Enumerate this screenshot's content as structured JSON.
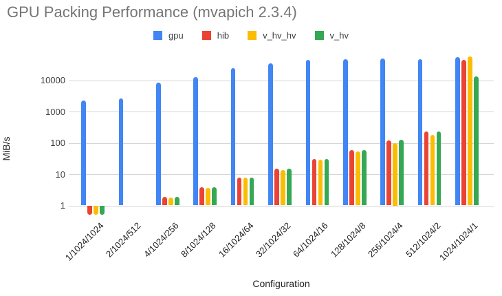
{
  "title": "GPU Packing Performance (mvapich 2.3.4)",
  "chart_data": {
    "type": "bar",
    "title": "GPU Packing Performance (mvapich 2.3.4)",
    "xlabel": "Configuration",
    "ylabel": "MiB/s",
    "y_scale": "log",
    "y_ticks": [
      1,
      10,
      100,
      1000,
      10000
    ],
    "ylim": [
      0.48,
      80000
    ],
    "grid": true,
    "legend_position": "top",
    "categories": [
      "1/1024/1024",
      "2/1024/512",
      "4/1024/256",
      "8/1024/128",
      "16/1024/64",
      "32/1024/32",
      "64/1024/16",
      "128/1024/8",
      "256/1024/4",
      "512/1024/2",
      "1024/1024/1"
    ],
    "series": [
      {
        "name": "gpu",
        "color": "#4285F4",
        "values": [
          2200,
          2650,
          8300,
          12600,
          24000,
          34500,
          44000,
          46500,
          49000,
          46000,
          54000
        ]
      },
      {
        "name": "hib",
        "color": "#EA4335",
        "values": [
          0.5,
          null,
          1.9,
          3.8,
          7.8,
          15,
          30,
          60,
          120,
          235,
          44000
        ]
      },
      {
        "name": "v_hv_hv",
        "color": "#FBBC04",
        "values": [
          0.5,
          null,
          1.8,
          3.7,
          7.6,
          13.5,
          29,
          53,
          100,
          175,
          56000
        ]
      },
      {
        "name": "v_hv",
        "color": "#34A853",
        "values": [
          0.5,
          null,
          1.9,
          3.8,
          7.8,
          15,
          30,
          58,
          125,
          225,
          13000
        ]
      }
    ]
  }
}
